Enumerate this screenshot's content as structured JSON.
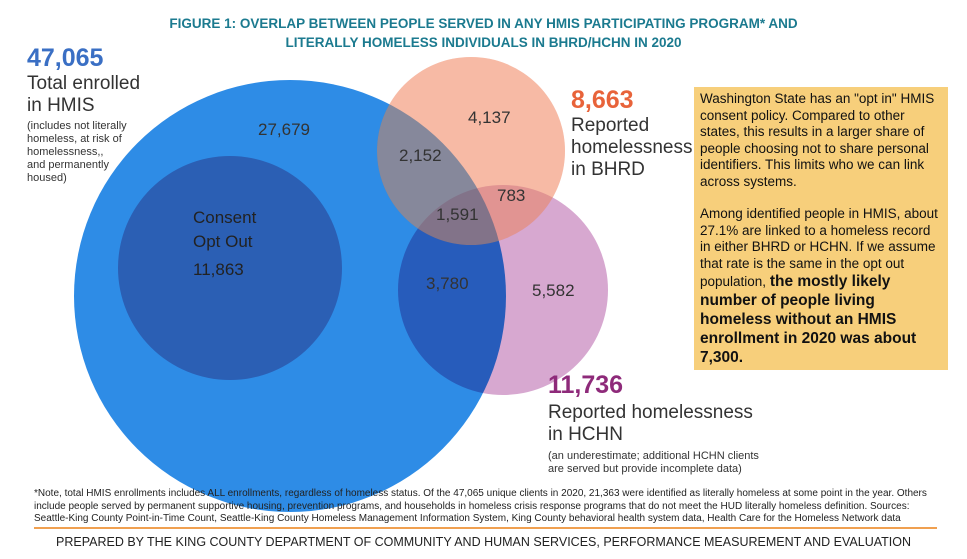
{
  "title_lines": [
    "FIGURE 1: OVERLAP BETWEEN PEOPLE SERVED IN ANY HMIS PARTICIPATING PROGRAM* AND",
    "LITERALLY HOMELESS INDIVIDUALS IN BHRD/HCHN IN 2020"
  ],
  "hmis": {
    "total": "47,065",
    "label_lines": [
      "Total enrolled",
      "in HMIS"
    ],
    "note_lines": [
      "(includes not literally",
      "homeless, at risk of",
      "homelessness,,",
      "and permanently",
      "housed)"
    ],
    "color": "#2e8ce6"
  },
  "consent": {
    "label_lines": [
      "Consent",
      "Opt Out"
    ],
    "value": "11,863",
    "color": "#2b5fb4"
  },
  "bhrd": {
    "total": "8,663",
    "label_lines": [
      "Reported",
      "homelessness",
      "in BHRD"
    ],
    "color": "#f4a488",
    "total_color": "#e8633a"
  },
  "hchn": {
    "total": "11,736",
    "label_lines": [
      "Reported homelessness",
      "in HCHN"
    ],
    "note_lines": [
      "(an underestimate; additional HCHN clients",
      "are served but provide incomplete data)"
    ],
    "color": "#c98bc0",
    "total_color": "#8e2a7a"
  },
  "regions": {
    "hmis_only": "27,679",
    "bhrd_only": "4,137",
    "hmis_bhrd": "2,152",
    "bhrd_hchn": "783",
    "all_three": "1,591",
    "hmis_hchn": "3,780",
    "hchn_only": "5,582"
  },
  "callout": {
    "para1": "Washington State has an \"opt in\" HMIS consent policy. Compared to other states, this results in a larger share of people choosing not to share personal identifiers. This limits who we can link across systems.",
    "para2": "Among identified people in HMIS, about 27.1% are linked to a homeless record in either BHRD or HCHN. If we assume that rate is the same in the opt out population,",
    "para2_bold": "the mostly likely number of people living homeless without an HMIS enrollment in 2020 was about 7,300."
  },
  "note": "*Note, total HMIS enrollments includes ALL enrollments, regardless of homeless status. Of the 47,065 unique clients in 2020, 21,363 were identified as literally homeless at some point in the year. Others include people served by permanent supportive housing, prevention programs, and households in homeless crisis response programs that do not meet the HUD literally homeless definition. Sources: Seattle-King County Point-in-Time Count, Seattle-King County Homeless Management Information System, King County behavioral health system data, Health Care for the Homeless Network data",
  "footer": "PREPARED BY THE KING COUNTY DEPARTMENT OF COMMUNITY AND HUMAN SERVICES, PERFORMANCE MEASUREMENT AND EVALUATION"
}
